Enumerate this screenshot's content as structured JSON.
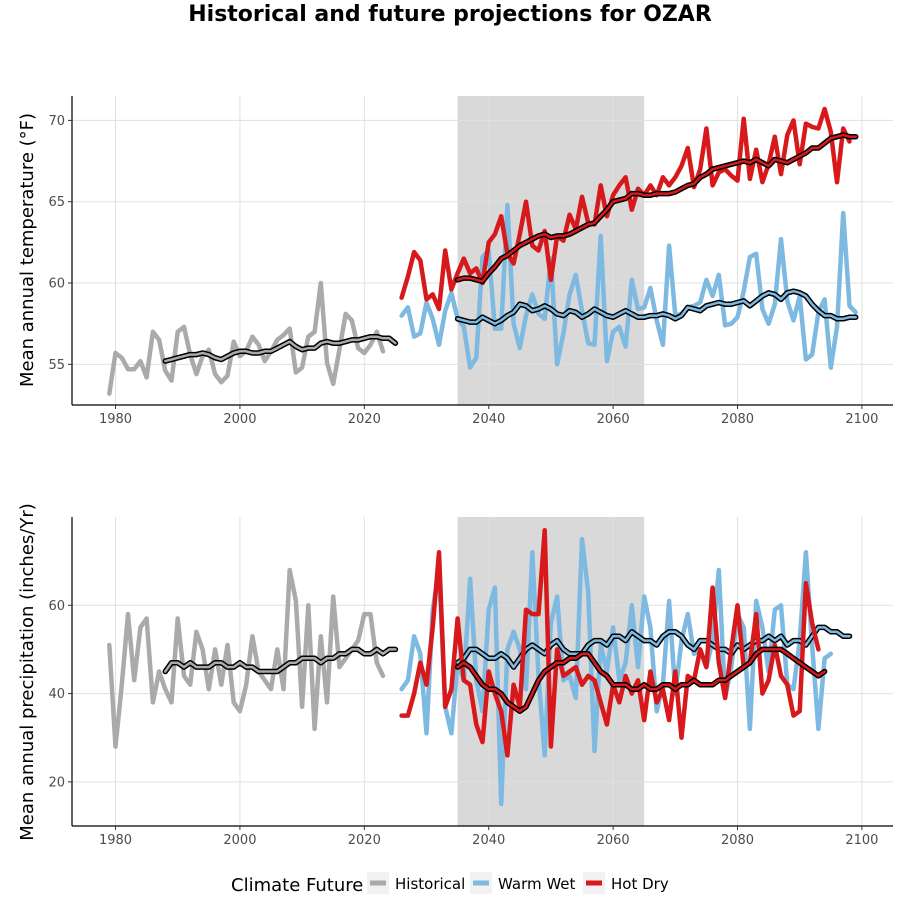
{
  "title": "Historical and future projections for OZAR",
  "legend": {
    "title": "Climate Future",
    "items": [
      {
        "label": "Historical",
        "color": "#aaaaaa"
      },
      {
        "label": "Warm Wet",
        "color": "#7db9e0"
      },
      {
        "label": "Hot Dry",
        "color": "#d7191c"
      }
    ]
  },
  "colors": {
    "historical": "#aaaaaa",
    "warm_wet": "#7db9e0",
    "hot_dry": "#d7191c",
    "rolling_mean": "#000000",
    "future_window_shade": "#d9d9d9"
  },
  "chart_data": [
    {
      "type": "line",
      "title": "",
      "xlabel": "",
      "ylabel": "Mean annual temperature (°F)",
      "xlim": [
        1973,
        2105
      ],
      "ylim": [
        52.5,
        71.5
      ],
      "xticks": [
        1980,
        2000,
        2020,
        2040,
        2060,
        2080,
        2100
      ],
      "yticks": [
        55,
        60,
        65,
        70
      ],
      "grid": true,
      "shaded_x_range": [
        2035,
        2065
      ],
      "series": [
        {
          "name": "Historical",
          "color": "#aaaaaa",
          "x_start": 1979,
          "values": [
            53.2,
            55.7,
            55.4,
            54.7,
            54.7,
            55.2,
            54.2,
            57.0,
            56.5,
            54.6,
            54.0,
            57.0,
            57.3,
            55.6,
            54.4,
            55.5,
            55.9,
            54.4,
            53.9,
            54.3,
            56.4,
            55.5,
            55.8,
            56.7,
            56.2,
            55.2,
            55.8,
            56.5,
            56.8,
            57.2,
            54.5,
            54.8,
            56.7,
            57.0,
            60.0,
            55.1,
            53.8,
            55.9,
            58.1,
            57.7,
            56.0,
            55.7,
            56.2,
            57.0,
            55.8
          ]
        },
        {
          "name": "Historical rolling mean",
          "color": "#000000",
          "rolling_mean_of": "Historical",
          "x_start": 1988,
          "values": [
            55.2,
            55.3,
            55.4,
            55.5,
            55.6,
            55.6,
            55.7,
            55.6,
            55.4,
            55.3,
            55.5,
            55.7,
            55.8,
            55.8,
            55.7,
            55.7,
            55.8,
            55.8,
            56.0,
            56.2,
            56.4,
            56.1,
            55.9,
            56.0,
            56.0,
            56.3,
            56.4,
            56.3,
            56.3,
            56.4,
            56.5,
            56.5,
            56.6,
            56.7,
            56.7,
            56.6,
            56.6,
            56.3
          ]
        },
        {
          "name": "Warm Wet",
          "color": "#7db9e0",
          "x_start": 2026,
          "values": [
            58.0,
            58.5,
            56.7,
            56.9,
            58.8,
            57.8,
            56.2,
            58.3,
            59.4,
            57.8,
            57.3,
            54.8,
            55.4,
            61.6,
            62.0,
            57.2,
            57.2,
            64.8,
            57.5,
            56.0,
            58.0,
            59.3,
            58.1,
            57.8,
            61.5,
            55.0,
            56.9,
            59.3,
            60.5,
            58.3,
            56.3,
            56.2,
            62.9,
            55.2,
            57.0,
            57.3,
            56.1,
            60.2,
            58.4,
            58.5,
            59.7,
            57.7,
            56.2,
            62.3,
            58.0,
            58.1,
            58.5,
            58.6,
            58.8,
            60.2,
            59.2,
            60.5,
            57.4,
            57.5,
            57.9,
            59.5,
            61.6,
            61.8,
            58.4,
            57.5,
            58.7,
            62.7,
            58.9,
            57.7,
            59.2,
            55.3,
            55.6,
            58.2,
            59.0,
            54.8,
            57.3,
            64.3,
            58.6,
            58.2
          ]
        },
        {
          "name": "Warm Wet rolling mean",
          "color": "#000000",
          "rolling_mean_of": "Warm Wet",
          "x_start": 2035,
          "values": [
            57.8,
            57.7,
            57.6,
            57.6,
            57.9,
            57.7,
            57.5,
            57.7,
            58.0,
            58.2,
            58.7,
            58.6,
            58.3,
            58.4,
            58.6,
            58.4,
            58.1,
            58.0,
            58.3,
            58.2,
            57.9,
            58.1,
            58.4,
            58.2,
            58.0,
            57.9,
            58.1,
            58.3,
            58.1,
            57.9,
            57.9,
            58.0,
            58.0,
            58.1,
            58.0,
            57.8,
            58.0,
            58.5,
            58.4,
            58.3,
            58.6,
            58.7,
            58.8,
            58.7,
            58.7,
            58.8,
            58.9,
            58.6,
            58.9,
            59.2,
            59.4,
            59.3,
            59.0,
            59.4,
            59.5,
            59.4,
            59.2,
            58.7,
            58.3,
            58.0,
            58.0,
            57.8,
            57.8,
            57.9,
            57.9
          ]
        },
        {
          "name": "Hot Dry",
          "color": "#d7191c",
          "x_start": 2026,
          "values": [
            59.1,
            60.4,
            61.9,
            61.4,
            59.0,
            59.3,
            58.4,
            62.0,
            59.6,
            60.6,
            61.5,
            60.6,
            60.9,
            60.0,
            62.5,
            63.0,
            64.1,
            61.8,
            61.2,
            63.0,
            65.0,
            62.3,
            62.0,
            63.2,
            60.2,
            62.9,
            62.6,
            64.2,
            63.3,
            65.3,
            63.7,
            63.6,
            66.0,
            64.1,
            65.4,
            66.0,
            66.5,
            64.5,
            65.8,
            65.4,
            66.0,
            65.4,
            66.5,
            66.0,
            66.5,
            67.2,
            68.3,
            65.9,
            67.0,
            69.5,
            66.0,
            66.8,
            67.0,
            66.6,
            66.3,
            70.1,
            66.4,
            68.2,
            66.2,
            67.3,
            69.0,
            66.7,
            69.1,
            70.0,
            67.3,
            69.8,
            69.6,
            69.5,
            70.7,
            69.3,
            66.2,
            69.5,
            68.7
          ]
        },
        {
          "name": "Hot Dry rolling mean",
          "color": "#000000",
          "rolling_mean_of": "Hot Dry",
          "x_start": 2035,
          "values": [
            60.2,
            60.3,
            60.3,
            60.2,
            60.1,
            60.6,
            61.0,
            61.5,
            61.7,
            62.0,
            62.3,
            62.5,
            62.7,
            62.9,
            63.0,
            62.8,
            62.9,
            62.9,
            63.0,
            63.2,
            63.4,
            63.6,
            63.7,
            64.1,
            64.5,
            65.0,
            65.1,
            65.2,
            65.5,
            65.5,
            65.4,
            65.4,
            65.5,
            65.5,
            65.5,
            65.6,
            65.8,
            66.0,
            66.1,
            66.5,
            66.7,
            67.0,
            67.1,
            67.2,
            67.3,
            67.4,
            67.5,
            67.4,
            67.6,
            67.4,
            67.2,
            67.6,
            67.5,
            67.4,
            67.6,
            67.8,
            68.0,
            68.3,
            68.3,
            68.6,
            68.9,
            69.0,
            69.1,
            69.0,
            69.0
          ]
        }
      ]
    },
    {
      "type": "line",
      "title": "",
      "xlabel": "",
      "ylabel": "Mean annual precipitation (inches/Yr)",
      "xlim": [
        1973,
        2105
      ],
      "ylim": [
        10,
        80
      ],
      "xticks": [
        1980,
        2000,
        2020,
        2040,
        2060,
        2080,
        2100
      ],
      "yticks": [
        20,
        40,
        60
      ],
      "grid": true,
      "shaded_x_range": [
        2035,
        2065
      ],
      "series": [
        {
          "name": "Historical",
          "color": "#aaaaaa",
          "x_start": 1979,
          "values": [
            51,
            28,
            42,
            58,
            43,
            55,
            57,
            38,
            45,
            41,
            38,
            57,
            44,
            42,
            54,
            50,
            41,
            50,
            42,
            51,
            38,
            36,
            42,
            53,
            45,
            43,
            41,
            50,
            41,
            68,
            61,
            37,
            60,
            32,
            53,
            38,
            62,
            46,
            48,
            50,
            52,
            58,
            58,
            47,
            44
          ]
        },
        {
          "name": "Historical rolling mean",
          "color": "#000000",
          "rolling_mean_of": "Historical",
          "x_start": 1988,
          "values": [
            45,
            47,
            47,
            46,
            47,
            46,
            46,
            46,
            47,
            47,
            46,
            46,
            47,
            46,
            46,
            45,
            45,
            45,
            45,
            46,
            47,
            47,
            48,
            48,
            48,
            47,
            48,
            48,
            49,
            49,
            50,
            50,
            49,
            49,
            50,
            49,
            50,
            50
          ]
        },
        {
          "name": "Warm Wet",
          "color": "#7db9e0",
          "x_start": 2026,
          "values": [
            41,
            43,
            53,
            49,
            31,
            59,
            68,
            37,
            31,
            47,
            43,
            66,
            43,
            36,
            59,
            64,
            15,
            50,
            54,
            50,
            41,
            72,
            44,
            26,
            56,
            62,
            43,
            44,
            39,
            75,
            63,
            27,
            51,
            45,
            55,
            43,
            47,
            60,
            46,
            62,
            55,
            36,
            42,
            61,
            40,
            52,
            58,
            49,
            50,
            46,
            52,
            68,
            39,
            46,
            58,
            55,
            32,
            61,
            55,
            45,
            59,
            60,
            42,
            41,
            52,
            72,
            51,
            32,
            48,
            49
          ]
        },
        {
          "name": "Warm Wet rolling mean",
          "color": "#000000",
          "rolling_mean_of": "Warm Wet",
          "x_start": 2035,
          "values": [
            47,
            48,
            50,
            50,
            49,
            48,
            48,
            49,
            48,
            46,
            48,
            50,
            51,
            50,
            49,
            51,
            52,
            50,
            49,
            49,
            49,
            51,
            52,
            52,
            51,
            53,
            53,
            52,
            54,
            53,
            52,
            52,
            51,
            53,
            54,
            54,
            53,
            51,
            50,
            52,
            52,
            51,
            50,
            50,
            49,
            51,
            50,
            51,
            52,
            52,
            53,
            52,
            53,
            51,
            52,
            52,
            51,
            53,
            55,
            55,
            54,
            54,
            53,
            53
          ]
        },
        {
          "name": "Hot Dry",
          "color": "#d7191c",
          "x_start": 2026,
          "values": [
            35,
            35,
            40,
            47,
            42,
            55,
            72,
            37,
            41,
            57,
            43,
            42,
            33,
            29,
            45,
            40,
            36,
            26,
            42,
            37,
            59,
            58,
            58,
            77,
            28,
            50,
            44,
            45,
            46,
            42,
            44,
            43,
            38,
            33,
            42,
            38,
            44,
            40,
            43,
            34,
            45,
            38,
            41,
            34,
            45,
            30,
            44,
            43,
            50,
            46,
            64,
            47,
            39,
            50,
            60,
            46,
            47,
            58,
            40,
            43,
            51,
            44,
            42,
            35,
            36,
            65,
            56,
            50
          ]
        },
        {
          "name": "Hot Dry rolling mean",
          "color": "#000000",
          "rolling_mean_of": "Hot Dry",
          "x_start": 2035,
          "values": [
            46,
            47,
            46,
            44,
            42,
            41,
            41,
            40,
            38,
            37,
            36,
            37,
            40,
            43,
            45,
            46,
            47,
            47,
            48,
            48,
            49,
            49,
            47,
            45,
            44,
            42,
            42,
            42,
            41,
            41,
            42,
            41,
            41,
            42,
            42,
            41,
            42,
            42,
            43,
            42,
            42,
            42,
            43,
            43,
            44,
            45,
            46,
            47,
            49,
            50,
            50,
            50,
            50,
            49,
            48,
            47,
            46,
            45,
            44,
            45
          ]
        }
      ]
    }
  ]
}
